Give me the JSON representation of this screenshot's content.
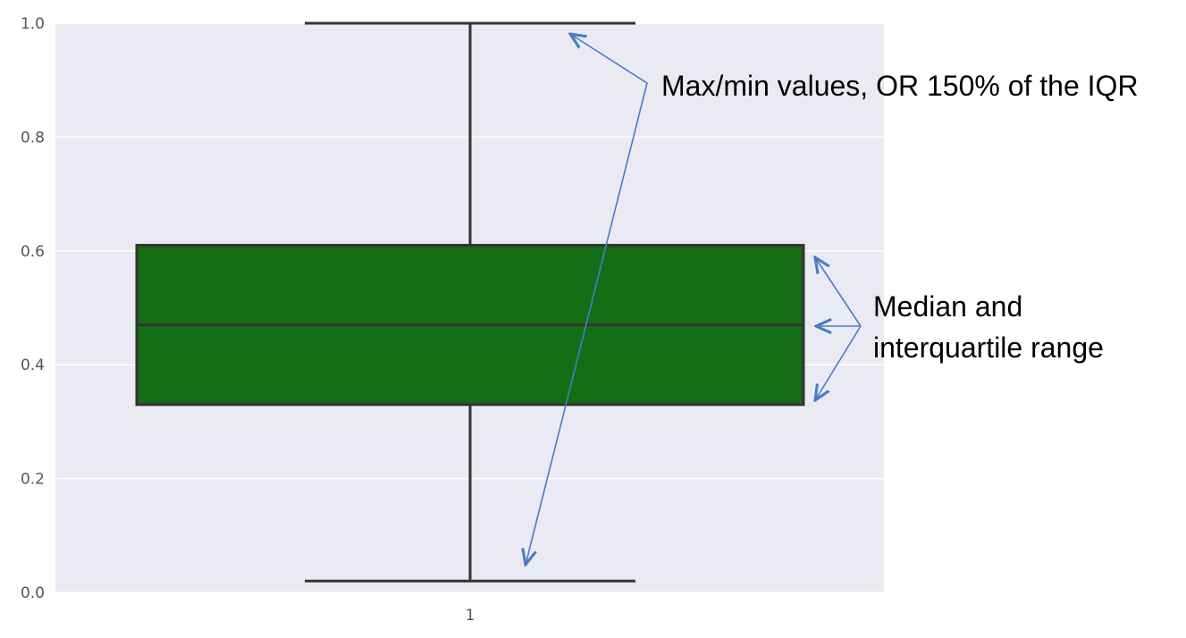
{
  "chart_data": {
    "type": "box",
    "categories": [
      "1"
    ],
    "box": {
      "whisker_low": 0.02,
      "q1": 0.33,
      "median": 0.47,
      "q3": 0.61,
      "whisker_high": 1.0
    },
    "ylim": [
      0.0,
      1.0
    ],
    "y_ticks": [
      "0.0",
      "0.2",
      "0.4",
      "0.6",
      "0.8",
      "1.0"
    ],
    "grid": true,
    "title": "",
    "xlabel": "",
    "ylabel": "",
    "colors": {
      "box_fill": "#146c14",
      "box_edge": "#333333",
      "plot_background": "#eaeaf2",
      "grid": "#ffffff",
      "annotation_arrow": "#4a7cc4"
    },
    "annotations": [
      {
        "text": "Max/min values, OR 150% of the IQR"
      },
      {
        "lines": [
          "Median and",
          "interquartile range"
        ]
      }
    ]
  }
}
